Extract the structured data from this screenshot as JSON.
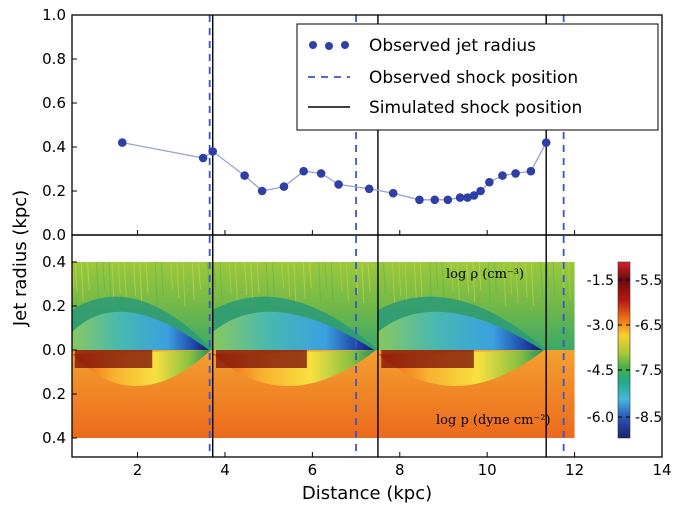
{
  "chart_data": {
    "type": "scatter",
    "xlabel": "Distance (kpc)",
    "ylabel": "Jet radius (kpc)",
    "xlim": [
      0.5,
      14
    ],
    "x_ticks": [
      "2",
      "4",
      "6",
      "8",
      "10",
      "12",
      "14"
    ],
    "top_panel": {
      "ylim": [
        0.0,
        1.0
      ],
      "y_ticks": [
        "0.0",
        "0.2",
        "0.4",
        "0.6",
        "0.8",
        "1.0"
      ],
      "series": [
        {
          "name": "Observed jet radius",
          "color": "#2f3fa8",
          "x": [
            1.65,
            3.5,
            3.72,
            4.45,
            4.85,
            5.35,
            5.8,
            6.2,
            6.6,
            7.3,
            7.85,
            8.45,
            8.8,
            9.1,
            9.38,
            9.55,
            9.7,
            9.85,
            10.05,
            10.35,
            10.65,
            11.0,
            11.35
          ],
          "y": [
            0.42,
            0.35,
            0.38,
            0.27,
            0.2,
            0.22,
            0.29,
            0.28,
            0.23,
            0.21,
            0.19,
            0.16,
            0.16,
            0.16,
            0.17,
            0.17,
            0.18,
            0.2,
            0.24,
            0.27,
            0.28,
            0.29,
            0.42
          ]
        }
      ],
      "legend_position": "top-right",
      "legend": [
        {
          "label": "Observed jet radius",
          "style": "dots",
          "color": "#2f3fa8"
        },
        {
          "label": "Observed shock position",
          "style": "dashed",
          "color": "#3a56c8"
        },
        {
          "label": "Simulated shock position",
          "style": "solid",
          "color": "#000000"
        }
      ]
    },
    "bottom_panel": {
      "y_ticks": [
        "0.4",
        "0.2",
        "0.0",
        "0.2",
        "0.4"
      ],
      "upper_label": "log ρ (cm⁻³)",
      "lower_label": "log p (dyne cm⁻²)"
    },
    "observed_shock_positions": [
      3.65,
      7.0,
      11.75
    ],
    "simulated_shock_positions": [
      3.72,
      7.5,
      11.35
    ],
    "colorbar": {
      "rho_ticks": [
        "-1.5",
        "-3.0",
        "-4.5",
        "-6.0"
      ],
      "p_ticks": [
        "-5.5",
        "-6.5",
        "-7.5",
        "-8.5"
      ]
    }
  }
}
